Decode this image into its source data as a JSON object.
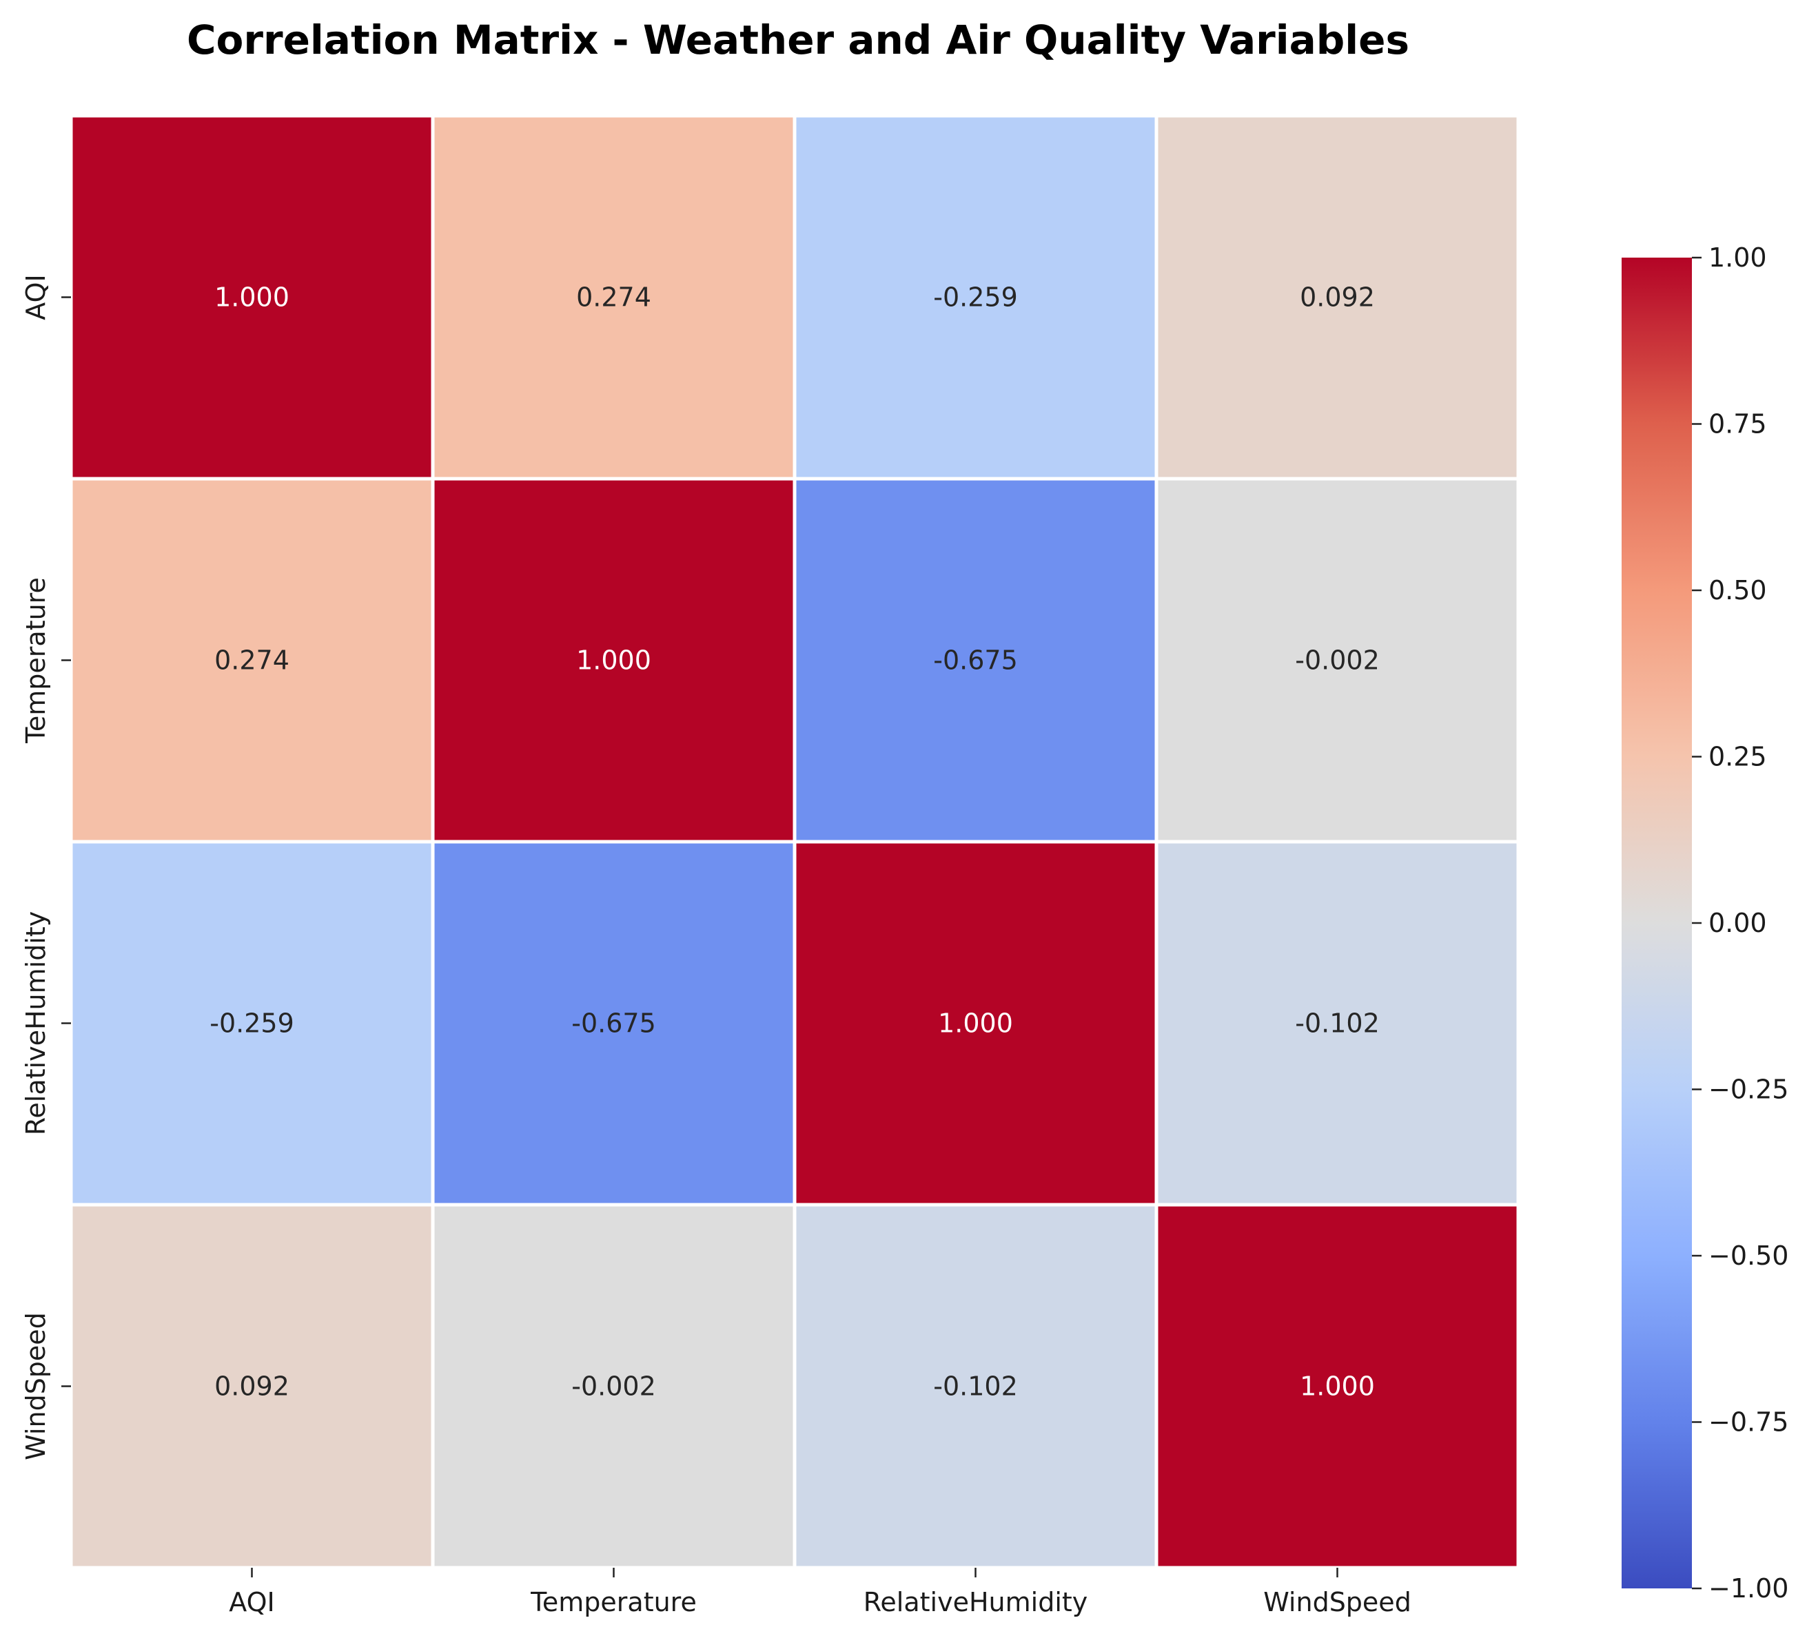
{
  "chart_data": {
    "type": "heatmap",
    "title": "Correlation Matrix - Weather and Air Quality Variables",
    "x_labels": [
      "AQI",
      "Temperature",
      "RelativeHumidity",
      "WindSpeed"
    ],
    "y_labels": [
      "AQI",
      "Temperature",
      "RelativeHumidity",
      "WindSpeed"
    ],
    "values": [
      [
        1.0,
        0.274,
        -0.259,
        0.092
      ],
      [
        0.274,
        1.0,
        -0.675,
        -0.002
      ],
      [
        -0.259,
        -0.675,
        1.0,
        -0.102
      ],
      [
        0.092,
        -0.002,
        -0.102,
        1.0
      ]
    ],
    "value_format": "3 decimals",
    "colormap": "coolwarm",
    "vmin": -1.0,
    "vmax": 1.0,
    "colorbar_ticks": [
      1.0,
      0.75,
      0.5,
      0.25,
      0.0,
      -0.25,
      -0.5,
      -0.75,
      -1.0
    ],
    "colorbar_tick_labels": [
      "1.00",
      "0.75",
      "0.50",
      "0.25",
      "0.00",
      "−0.25",
      "−0.50",
      "−0.75",
      "−1.00"
    ],
    "cell_border_color": "#ffffff",
    "legend": "right colorbar",
    "grid": false
  }
}
